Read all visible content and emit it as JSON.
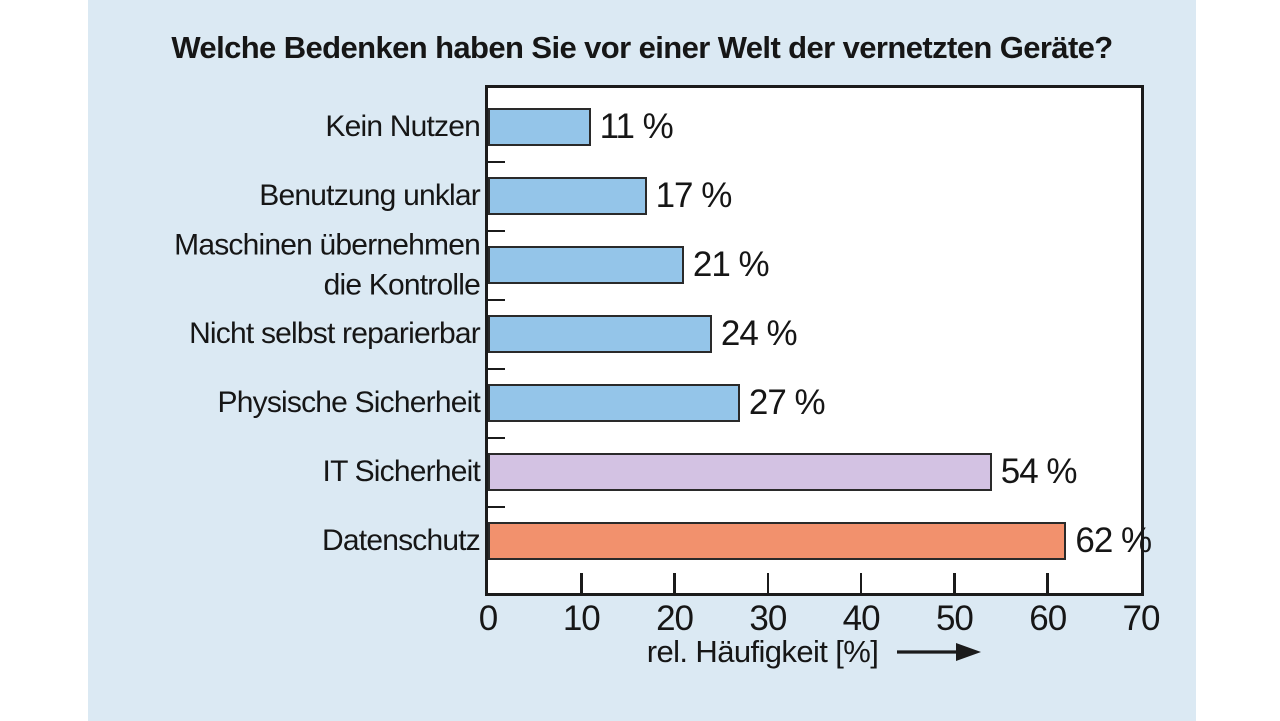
{
  "title": "Welche Bedenken haben Sie vor einer Welt der vernetzten Geräte?",
  "chart_data": {
    "type": "bar",
    "orientation": "horizontal",
    "title": "Welche Bedenken haben Sie vor einer Welt der vernetzten Geräte?",
    "categories": [
      "Kein Nutzen",
      "Benutzung unklar",
      "Maschinen übernehmen\ndie Kontrolle",
      "Nicht selbst reparierbar",
      "Physische Sicherheit",
      "IT Sicherheit",
      "Datenschutz"
    ],
    "values": [
      11,
      17,
      21,
      24,
      27,
      54,
      62
    ],
    "value_labels": [
      "11 %",
      "17 %",
      "21 %",
      "24 %",
      "27 %",
      "54 %",
      "62 %"
    ],
    "bar_colors": [
      "#94c5e9",
      "#94c5e9",
      "#94c5e9",
      "#94c5e9",
      "#94c5e9",
      "#d3c2e3",
      "#f2916d"
    ],
    "xlabel": "rel. Häufigkeit [%]",
    "xlim": [
      0,
      70
    ],
    "xticks": [
      0,
      10,
      20,
      30,
      40,
      50,
      60,
      70
    ],
    "grid": "off",
    "legend": "none"
  },
  "colors": {
    "panel_background": "#dbe9f3",
    "plot_background": "#ffffff",
    "ink": "#1b1b1b",
    "bar_blue": "#94c5e9",
    "bar_purple": "#d3c2e3",
    "bar_orange": "#f2916d"
  }
}
